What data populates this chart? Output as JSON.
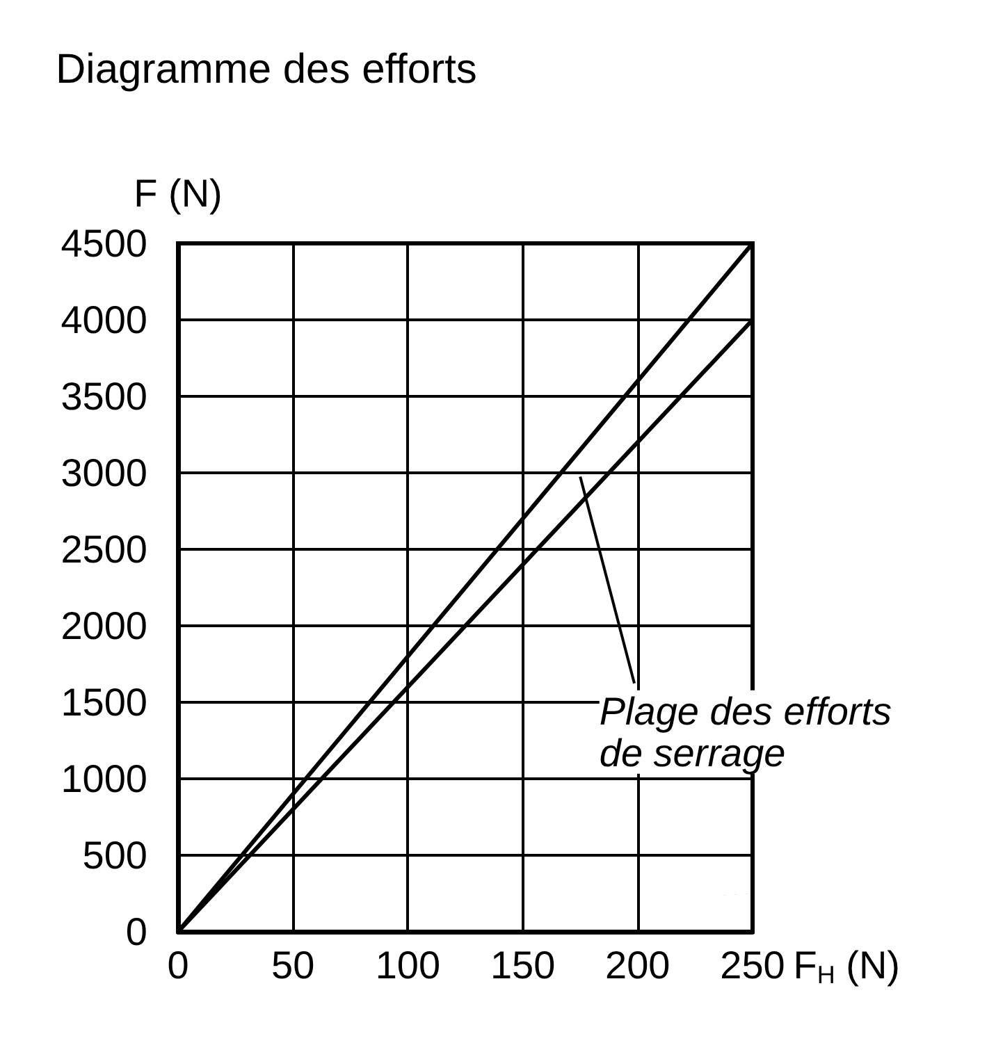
{
  "chart_data": {
    "type": "line",
    "title": "Diagramme des efforts",
    "xlabel": "F$_{H}$ (N)",
    "ylabel": "F (N)",
    "x": [
      0,
      250
    ],
    "series": [
      {
        "color": "#000000",
        "values": [
          0,
          4500
        ]
      },
      {
        "color": "#000000",
        "values": [
          0,
          4000
        ]
      }
    ],
    "xlim": [
      0,
      250
    ],
    "xticks": [
      0,
      50,
      100,
      150,
      200,
      250
    ],
    "ylim": [
      0,
      4500
    ],
    "yticks": [
      0,
      500,
      1000,
      1500,
      2000,
      2500,
      3000,
      3500,
      4000,
      4500
    ],
    "grid": true,
    "marker": "none",
    "line_style": "solid",
    "annotations": [
      "Plage des efforts de serrage"
    ]
  }
}
